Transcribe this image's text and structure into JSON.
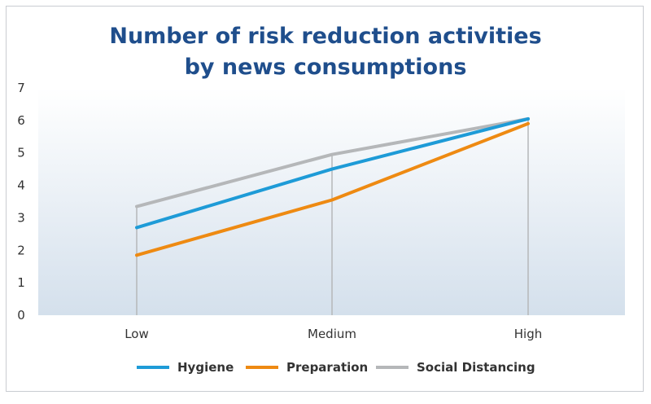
{
  "chart_data": {
    "type": "line",
    "title_line1": "Number of risk reduction activities",
    "title_line2": "by news consumptions",
    "categories": [
      "Low",
      "Medium",
      "High"
    ],
    "ylim": [
      0,
      7
    ],
    "yticks": [
      "0",
      "1",
      "2",
      "3",
      "4",
      "5",
      "6",
      "7"
    ],
    "legend_position": "bottom",
    "series": [
      {
        "name": "Hygiene",
        "color": "#1e9bd7",
        "values": [
          2.7,
          4.5,
          6.05
        ]
      },
      {
        "name": "Preparation",
        "color": "#ee8a12",
        "values": [
          1.85,
          3.55,
          5.9
        ]
      },
      {
        "name": "Social Distancing",
        "color": "#b5b7b9",
        "values": [
          3.35,
          4.95,
          6.05
        ]
      }
    ]
  }
}
